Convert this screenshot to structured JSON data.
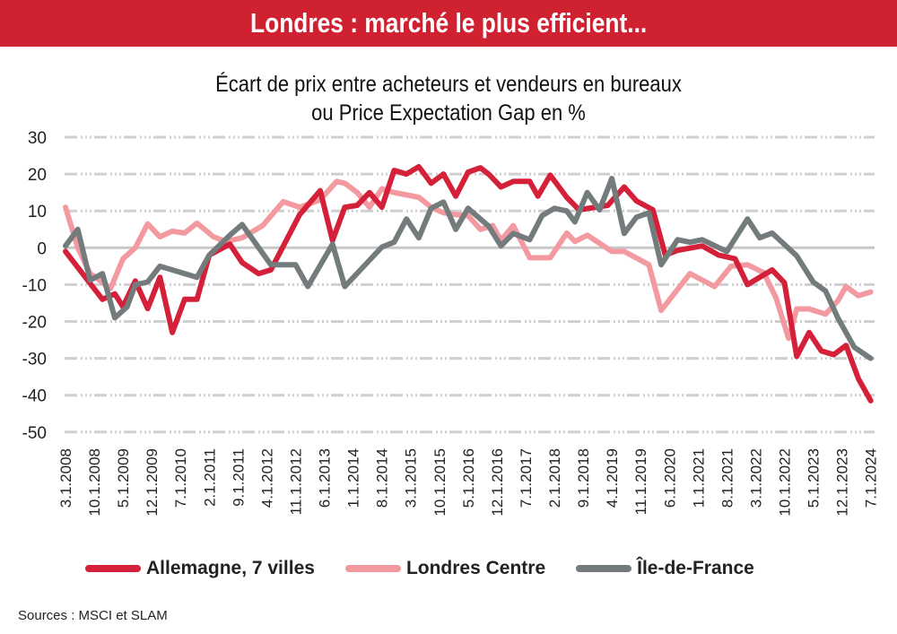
{
  "header": {
    "title": "Londres : marché le plus efficient..."
  },
  "subtitle": {
    "line1": "Écart de prix entre acheteurs et vendeurs en bureaux",
    "line2": "ou Price Expectation Gap en %"
  },
  "sources": "Sources : MSCI et SLAM",
  "colors": {
    "header": "#cf2130",
    "allemagne": "#d42039",
    "londres": "#f39aa1",
    "idf": "#737b7d",
    "grid": "#c8c8c8"
  },
  "chart_data": {
    "type": "line",
    "title": "Écart de prix entre acheteurs et vendeurs en bureaux ou Price Expectation Gap en %",
    "ylim": [
      -50,
      30
    ],
    "yticks": [
      "30",
      "20",
      "10",
      "0",
      "-10",
      "-20",
      "-30",
      "-40",
      "-50"
    ],
    "xticks": [
      "3.1.2008",
      "10.1.2008",
      "5.1.2009",
      "12.1.2009",
      "7.1.2010",
      "2.1.2011",
      "9.1.2011",
      "4.1.2012",
      "11.1.2012",
      "6.1.2013",
      "1.1.2014",
      "8.1.2014",
      "3.1.2015",
      "10.1.2015",
      "5.1.2016",
      "12.1.2016",
      "7.1.2017",
      "2.1.2018",
      "9.1.2018",
      "4.1.2019",
      "11.1.2019",
      "6.1.2020",
      "1.1.2021",
      "8.1.2021",
      "3.1.2022",
      "10.1.2022",
      "5.1.2023",
      "12.1.2023",
      "7.1.2024"
    ],
    "grid": true,
    "legend": "bottom",
    "series": [
      {
        "name": "Allemagne, 7 villes",
        "color": "#d42039",
        "points": [
          [
            "2008-03",
            -1
          ],
          [
            "2008-12",
            -14
          ],
          [
            "2009-03",
            -12.5
          ],
          [
            "2009-05",
            -16
          ],
          [
            "2009-08",
            -9
          ],
          [
            "2009-11",
            -16.5
          ],
          [
            "2010-02",
            -8
          ],
          [
            "2010-05",
            -23
          ],
          [
            "2010-08",
            -14
          ],
          [
            "2010-11",
            -14
          ],
          [
            "2011-02",
            -2
          ],
          [
            "2011-07",
            1
          ],
          [
            "2011-10",
            -4
          ],
          [
            "2012-02",
            -7
          ],
          [
            "2012-05",
            -6
          ],
          [
            "2012-12",
            9
          ],
          [
            "2013-05",
            15.5
          ],
          [
            "2013-08",
            2
          ],
          [
            "2013-11",
            11
          ],
          [
            "2014-02",
            11.5
          ],
          [
            "2014-05",
            15
          ],
          [
            "2014-08",
            11
          ],
          [
            "2014-11",
            21
          ],
          [
            "2015-02",
            20
          ],
          [
            "2015-05",
            22
          ],
          [
            "2015-08",
            17.5
          ],
          [
            "2015-11",
            20
          ],
          [
            "2016-02",
            14
          ],
          [
            "2016-05",
            20.5
          ],
          [
            "2016-08",
            21.7
          ],
          [
            "2016-10",
            20
          ],
          [
            "2017-01",
            16.5
          ],
          [
            "2017-04",
            18
          ],
          [
            "2017-08",
            18
          ],
          [
            "2017-10",
            14
          ],
          [
            "2018-01",
            19.7
          ],
          [
            "2018-05",
            13.7
          ],
          [
            "2018-08",
            10.3
          ],
          [
            "2019-03",
            11.5
          ],
          [
            "2019-07",
            16.5
          ],
          [
            "2019-10",
            12.7
          ],
          [
            "2020-02",
            10.3
          ],
          [
            "2020-05",
            -2
          ],
          [
            "2020-08",
            -0.7
          ],
          [
            "2021-02",
            0.5
          ],
          [
            "2021-06",
            -2
          ],
          [
            "2021-10",
            -3
          ],
          [
            "2022-01",
            -10
          ],
          [
            "2022-04",
            -8
          ],
          [
            "2022-07",
            -6
          ],
          [
            "2022-10",
            -9.5
          ],
          [
            "2023-01",
            -29.5
          ],
          [
            "2023-04",
            -23
          ],
          [
            "2023-07",
            -28
          ],
          [
            "2023-10",
            -29
          ],
          [
            "2024-01",
            -26.5
          ],
          [
            "2024-04",
            -35.5
          ],
          [
            "2024-07",
            -41.5
          ]
        ]
      },
      {
        "name": "Londres Centre",
        "color": "#f39aa1",
        "points": [
          [
            "2008-03",
            11
          ],
          [
            "2008-06",
            0
          ],
          [
            "2008-09",
            -7
          ],
          [
            "2009-02",
            -11
          ],
          [
            "2009-05",
            -3
          ],
          [
            "2009-08",
            0
          ],
          [
            "2009-11",
            6.5
          ],
          [
            "2010-02",
            3
          ],
          [
            "2010-05",
            4.5
          ],
          [
            "2010-08",
            4
          ],
          [
            "2010-11",
            6.7
          ],
          [
            "2011-03",
            3
          ],
          [
            "2011-06",
            1.7
          ],
          [
            "2011-10",
            2.7
          ],
          [
            "2012-03",
            6
          ],
          [
            "2012-08",
            12.5
          ],
          [
            "2012-12",
            11
          ],
          [
            "2013-05",
            13
          ],
          [
            "2013-09",
            18
          ],
          [
            "2013-11",
            17.5
          ],
          [
            "2014-02",
            15
          ],
          [
            "2014-05",
            11
          ],
          [
            "2014-08",
            16
          ],
          [
            "2014-11",
            15
          ],
          [
            "2015-05",
            13.7
          ],
          [
            "2015-08",
            11
          ],
          [
            "2015-11",
            9.5
          ],
          [
            "2016-02",
            9
          ],
          [
            "2016-05",
            8.7
          ],
          [
            "2016-08",
            5
          ],
          [
            "2016-11",
            6
          ],
          [
            "2017-01",
            2
          ],
          [
            "2017-04",
            6
          ],
          [
            "2017-08",
            -2.7
          ],
          [
            "2018-01",
            -2.7
          ],
          [
            "2018-05",
            4
          ],
          [
            "2018-07",
            1.7
          ],
          [
            "2018-10",
            3.4
          ],
          [
            "2019-04",
            -1
          ],
          [
            "2019-07",
            -1
          ],
          [
            "2020-01",
            -4.6
          ],
          [
            "2020-04",
            -17
          ],
          [
            "2020-11",
            -7
          ],
          [
            "2021-05",
            -10.5
          ],
          [
            "2021-09",
            -5
          ],
          [
            "2022-01",
            -4.6
          ],
          [
            "2022-05",
            -6.8
          ],
          [
            "2022-08",
            -13.7
          ],
          [
            "2022-11",
            -24.6
          ],
          [
            "2023-01",
            -16.6
          ],
          [
            "2023-04",
            -16.6
          ],
          [
            "2023-08",
            -18
          ],
          [
            "2023-11",
            -14.4
          ],
          [
            "2024-01",
            -10.5
          ],
          [
            "2024-04",
            -13
          ],
          [
            "2024-07",
            -12
          ]
        ]
      },
      {
        "name": "Île-de-France",
        "color": "#737b7d",
        "points": [
          [
            "2008-03",
            0.5
          ],
          [
            "2008-06",
            5
          ],
          [
            "2008-09",
            -8.8
          ],
          [
            "2008-12",
            -7
          ],
          [
            "2009-03",
            -19
          ],
          [
            "2009-06",
            -16
          ],
          [
            "2009-08",
            -10
          ],
          [
            "2009-11",
            -9.3
          ],
          [
            "2010-02",
            -5
          ],
          [
            "2010-11",
            -8
          ],
          [
            "2011-02",
            -2
          ],
          [
            "2011-07",
            3.4
          ],
          [
            "2011-10",
            6.3
          ],
          [
            "2012-05",
            -4.6
          ],
          [
            "2012-11",
            -4.6
          ],
          [
            "2013-02",
            -10.5
          ],
          [
            "2013-08",
            1
          ],
          [
            "2013-11",
            -10.5
          ],
          [
            "2014-08",
            0.2
          ],
          [
            "2014-11",
            1.5
          ],
          [
            "2015-02",
            7.8
          ],
          [
            "2015-05",
            2.7
          ],
          [
            "2015-08",
            10.7
          ],
          [
            "2015-11",
            12.4
          ],
          [
            "2016-02",
            5
          ],
          [
            "2016-05",
            10.7
          ],
          [
            "2016-10",
            5.9
          ],
          [
            "2017-01",
            0.5
          ],
          [
            "2017-04",
            3.9
          ],
          [
            "2017-08",
            2.2
          ],
          [
            "2017-11",
            8.7
          ],
          [
            "2018-02",
            10.7
          ],
          [
            "2018-05",
            10
          ],
          [
            "2018-07",
            7
          ],
          [
            "2018-10",
            15
          ],
          [
            "2019-01",
            10.3
          ],
          [
            "2019-04",
            18.8
          ],
          [
            "2019-07",
            3.9
          ],
          [
            "2019-10",
            8.3
          ],
          [
            "2020-01",
            9.5
          ],
          [
            "2020-04",
            -4.6
          ],
          [
            "2020-08",
            2.2
          ],
          [
            "2020-11",
            1.5
          ],
          [
            "2021-02",
            2.2
          ],
          [
            "2021-08",
            -1
          ],
          [
            "2022-01",
            7.8
          ],
          [
            "2022-04",
            2.7
          ],
          [
            "2022-07",
            4
          ],
          [
            "2023-01",
            -2.2
          ],
          [
            "2023-05",
            -9.3
          ],
          [
            "2023-08",
            -11.7
          ],
          [
            "2023-11",
            -19
          ],
          [
            "2024-03",
            -27
          ],
          [
            "2024-07",
            -30
          ]
        ]
      }
    ]
  }
}
